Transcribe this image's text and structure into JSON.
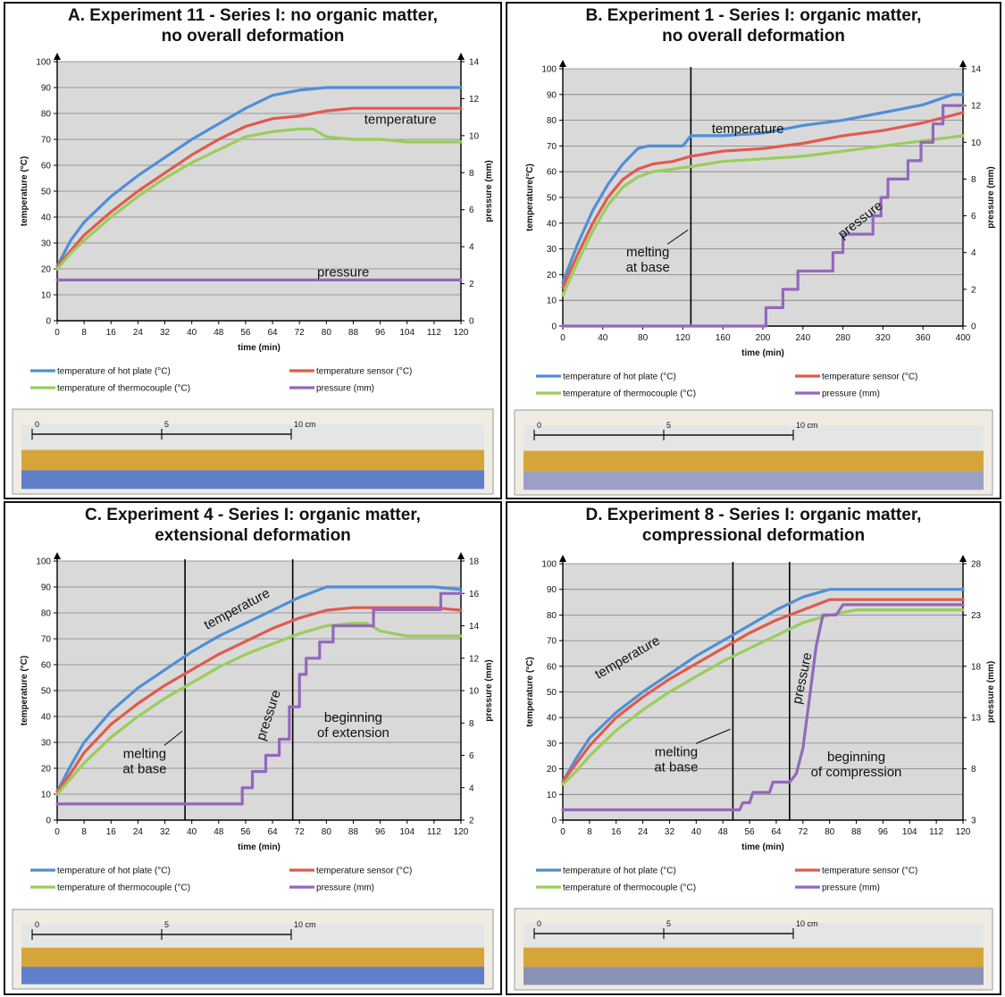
{
  "chart_data": [
    {
      "type": "line",
      "title": "A. Experiment 11 - Series I: no organic matter,\nno overall deformation",
      "xlabel": "time (min)",
      "ylabel": "temperature (°C)",
      "y2label": "pressure (mm)",
      "xlim": [
        0,
        120
      ],
      "ylim": [
        0,
        100
      ],
      "y2lim": [
        0,
        14
      ],
      "xticks": [
        0,
        8,
        16,
        24,
        32,
        40,
        48,
        56,
        64,
        72,
        80,
        88,
        96,
        104,
        112,
        120
      ],
      "yticks": [
        0,
        10,
        20,
        30,
        40,
        50,
        60,
        70,
        80,
        90,
        100
      ],
      "y2ticks": [
        0,
        2,
        4,
        6,
        8,
        10,
        12,
        14
      ],
      "grid": true,
      "legend_position": "bottom",
      "series": [
        {
          "name": "temperature of hot plate (°C)",
          "color": "#4f8fd6",
          "axis": "left",
          "x": [
            0,
            4,
            8,
            16,
            24,
            32,
            40,
            48,
            56,
            64,
            72,
            80,
            88,
            96,
            104,
            112,
            120
          ],
          "y": [
            21,
            31,
            38,
            48,
            56,
            63,
            70,
            76,
            82,
            87,
            89,
            90,
            90,
            90,
            90,
            90,
            90
          ]
        },
        {
          "name": "temperature sensor (°C)",
          "color": "#e05a4f",
          "axis": "left",
          "x": [
            0,
            4,
            8,
            16,
            24,
            32,
            40,
            48,
            56,
            64,
            72,
            80,
            88,
            96,
            104,
            112,
            120
          ],
          "y": [
            21,
            27,
            33,
            42,
            50,
            57,
            64,
            70,
            75,
            78,
            79,
            81,
            82,
            82,
            82,
            82,
            82
          ]
        },
        {
          "name": "temperature of thermocouple (°C)",
          "color": "#9acd5a",
          "axis": "left",
          "x": [
            0,
            4,
            8,
            16,
            24,
            32,
            40,
            48,
            56,
            64,
            72,
            76,
            80,
            88,
            96,
            104,
            112,
            120
          ],
          "y": [
            20,
            26,
            31,
            40,
            48,
            55,
            61,
            66,
            71,
            73,
            74,
            74,
            71,
            70,
            70,
            69,
            69,
            69
          ]
        },
        {
          "name": "pressure (mm)",
          "color": "#9467bd",
          "axis": "right",
          "x": [
            0,
            120
          ],
          "y": [
            2.2,
            2.2
          ]
        }
      ],
      "annotations": [
        {
          "text": "temperature",
          "x": 102,
          "y": 76,
          "rotate": 0,
          "line": false
        },
        {
          "text": "pressure",
          "x": 85,
          "y": 17,
          "rotate": 0,
          "line": false
        }
      ],
      "vlines": [],
      "photo_scale": [
        "0",
        "5",
        "10 cm"
      ]
    },
    {
      "type": "line",
      "title": "B. Experiment 1 - Series I: organic matter,\nno overall deformation",
      "xlabel": "time (min)",
      "ylabel": "temperature(°C)",
      "y2label": "pressure (mm)",
      "xlim": [
        0,
        400
      ],
      "ylim": [
        0,
        100
      ],
      "y2lim": [
        0,
        14
      ],
      "xticks": [
        0,
        40,
        80,
        120,
        160,
        200,
        240,
        280,
        320,
        360,
        400
      ],
      "yticks": [
        0,
        10,
        20,
        30,
        40,
        50,
        60,
        70,
        80,
        90,
        100
      ],
      "y2ticks": [
        0,
        2,
        4,
        6,
        8,
        10,
        12,
        14
      ],
      "grid": true,
      "legend_position": "bottom",
      "series": [
        {
          "name": "temperature of hot plate (°C)",
          "color": "#4f8fd6",
          "axis": "left",
          "x": [
            0,
            15,
            30,
            45,
            60,
            75,
            85,
            100,
            120,
            128,
            160,
            200,
            240,
            280,
            320,
            360,
            390,
            400
          ],
          "y": [
            17,
            32,
            45,
            55,
            63,
            69,
            70,
            70,
            70,
            74,
            74,
            75,
            78,
            80,
            83,
            86,
            90,
            90
          ]
        },
        {
          "name": "temperature sensor (°C)",
          "color": "#e05a4f",
          "axis": "left",
          "x": [
            0,
            15,
            30,
            45,
            60,
            75,
            90,
            110,
            128,
            160,
            200,
            240,
            280,
            320,
            360,
            400
          ],
          "y": [
            15,
            28,
            40,
            50,
            57,
            61,
            63,
            64,
            66,
            68,
            69,
            71,
            74,
            76,
            79,
            83
          ]
        },
        {
          "name": "temperature of thermocouple (°C)",
          "color": "#9acd5a",
          "axis": "left",
          "x": [
            0,
            15,
            30,
            45,
            60,
            75,
            90,
            110,
            128,
            160,
            200,
            240,
            280,
            320,
            360,
            400
          ],
          "y": [
            12,
            25,
            37,
            47,
            54,
            58,
            60,
            61,
            62,
            64,
            65,
            66,
            68,
            70,
            72,
            74
          ]
        },
        {
          "name": "pressure (mm)",
          "color": "#9467bd",
          "axis": "right",
          "x": [
            0,
            203,
            203,
            220,
            220,
            235,
            235,
            270,
            270,
            280,
            280,
            310,
            310,
            318,
            318,
            325,
            325,
            345,
            345,
            358,
            358,
            370,
            370,
            380,
            380,
            388,
            388,
            400
          ],
          "y": [
            0,
            0,
            1,
            1,
            2,
            2,
            3,
            3,
            4,
            4,
            5,
            5,
            6,
            6,
            7,
            7,
            8,
            8,
            9,
            9,
            10,
            10,
            11,
            11,
            12,
            12,
            12,
            12
          ]
        }
      ],
      "annotations": [
        {
          "text": "temperature",
          "x": 185,
          "y": 75,
          "rotate": 0,
          "line": false
        },
        {
          "text": "pressure",
          "x": 300,
          "y": 40,
          "rotate": -38,
          "line": false
        },
        {
          "text": "melting\nat base",
          "x": 85,
          "y": 27,
          "rotate": 0,
          "line": true
        }
      ],
      "vlines": [
        128
      ],
      "photo_scale": [
        "0",
        "5",
        "10 cm"
      ]
    },
    {
      "type": "line",
      "title": "C. Experiment 4 - Series I: organic matter,\nextensional deformation",
      "xlabel": "time (min)",
      "ylabel": "temperature (°C)",
      "y2label": "pressure (mm)",
      "xlim": [
        0,
        120
      ],
      "ylim": [
        0,
        100
      ],
      "y2lim": [
        2,
        18
      ],
      "xticks": [
        0,
        8,
        16,
        24,
        32,
        40,
        48,
        56,
        64,
        72,
        80,
        88,
        96,
        104,
        112,
        120
      ],
      "yticks": [
        0,
        10,
        20,
        30,
        40,
        50,
        60,
        70,
        80,
        90,
        100
      ],
      "y2ticks": [
        2,
        4,
        6,
        8,
        10,
        12,
        14,
        16,
        18
      ],
      "grid": true,
      "legend_position": "bottom",
      "series": [
        {
          "name": "temperature of hot plate (°C)",
          "color": "#4f8fd6",
          "axis": "left",
          "x": [
            0,
            4,
            8,
            16,
            24,
            32,
            40,
            48,
            56,
            64,
            72,
            80,
            88,
            96,
            104,
            112,
            120
          ],
          "y": [
            11,
            21,
            30,
            42,
            51,
            58,
            65,
            71,
            76,
            81,
            86,
            90,
            90,
            90,
            90,
            90,
            89
          ]
        },
        {
          "name": "temperature sensor (°C)",
          "color": "#e05a4f",
          "axis": "left",
          "x": [
            0,
            4,
            8,
            16,
            24,
            32,
            40,
            48,
            56,
            64,
            72,
            80,
            88,
            96,
            104,
            112,
            120
          ],
          "y": [
            11,
            18,
            26,
            37,
            45,
            52,
            58,
            64,
            69,
            74,
            78,
            81,
            82,
            82,
            82,
            82,
            81
          ]
        },
        {
          "name": "temperature of thermocouple (°C)",
          "color": "#9acd5a",
          "axis": "left",
          "x": [
            0,
            4,
            8,
            16,
            24,
            32,
            40,
            48,
            56,
            64,
            72,
            80,
            88,
            92,
            96,
            104,
            112,
            120
          ],
          "y": [
            10,
            16,
            22,
            32,
            40,
            47,
            53,
            59,
            64,
            68,
            72,
            75,
            76,
            76,
            73,
            71,
            71,
            71
          ]
        },
        {
          "name": "pressure (mm)",
          "color": "#9467bd",
          "axis": "right",
          "x": [
            0,
            55,
            55,
            58,
            58,
            62,
            62,
            66,
            66,
            69,
            69,
            72,
            72,
            74,
            74,
            78,
            78,
            82,
            82,
            86,
            86,
            94,
            94,
            104,
            104,
            114,
            114,
            120
          ],
          "y": [
            3,
            3,
            4,
            4,
            5,
            5,
            6,
            6,
            7,
            7,
            9,
            9,
            11,
            11,
            12,
            12,
            13,
            13,
            14,
            14,
            14,
            14,
            15,
            15,
            15,
            15,
            16,
            16
          ]
        }
      ],
      "annotations": [
        {
          "text": "temperature",
          "x": 54,
          "y": 80,
          "rotate": -28,
          "line": false
        },
        {
          "text": "pressure",
          "x": 64,
          "y": 40,
          "rotate": -72,
          "line": false
        },
        {
          "text": "melting\nat base",
          "x": 26,
          "y": 24,
          "rotate": 0,
          "line": true
        },
        {
          "text": "beginning\nof extension",
          "x": 88,
          "y": 38,
          "rotate": 0,
          "line": true
        }
      ],
      "vlines": [
        38,
        70
      ],
      "photo_scale": [
        "0",
        "5",
        "10 cm"
      ]
    },
    {
      "type": "line",
      "title": "D. Experiment 8 - Series I: organic matter,\ncompressional deformation",
      "xlabel": "time (min)",
      "ylabel": "temperature (°C)",
      "y2label": "pressure (mm)",
      "xlim": [
        0,
        120
      ],
      "ylim": [
        0,
        100
      ],
      "y2lim": [
        3,
        28
      ],
      "xticks": [
        0,
        8,
        16,
        24,
        32,
        40,
        48,
        56,
        64,
        72,
        80,
        88,
        96,
        104,
        112,
        120
      ],
      "xticklabels": [
        "0",
        "8",
        "16",
        "24",
        "32",
        "40",
        "48",
        "56",
        "64",
        "72",
        "80",
        "88",
        "96",
        "104",
        "112",
        "120"
      ],
      "yticks": [
        0,
        10,
        20,
        30,
        40,
        50,
        60,
        70,
        80,
        90,
        100
      ],
      "y2ticks": [
        3,
        8,
        13,
        18,
        23,
        28
      ],
      "grid": true,
      "legend_position": "bottom",
      "series": [
        {
          "name": "temperature of hot plate (°C)",
          "color": "#4f8fd6",
          "axis": "left",
          "x": [
            0,
            4,
            8,
            16,
            24,
            32,
            40,
            48,
            56,
            64,
            72,
            80,
            88,
            96,
            104,
            112,
            120
          ],
          "y": [
            15,
            24,
            32,
            42,
            50,
            57,
            64,
            70,
            76,
            82,
            87,
            90,
            90,
            90,
            90,
            90,
            90
          ]
        },
        {
          "name": "temperature sensor (°C)",
          "color": "#e05a4f",
          "axis": "left",
          "x": [
            0,
            4,
            8,
            16,
            24,
            32,
            40,
            48,
            56,
            64,
            72,
            80,
            88,
            96,
            104,
            112,
            120
          ],
          "y": [
            15,
            22,
            29,
            40,
            48,
            55,
            61,
            67,
            73,
            78,
            82,
            86,
            86,
            86,
            86,
            86,
            86
          ]
        },
        {
          "name": "temperature of thermocouple (°C)",
          "color": "#9acd5a",
          "axis": "left",
          "x": [
            0,
            4,
            8,
            16,
            24,
            32,
            40,
            48,
            56,
            64,
            72,
            80,
            88,
            96,
            104,
            112,
            120
          ],
          "y": [
            14,
            19,
            25,
            35,
            43,
            50,
            56,
            62,
            67,
            72,
            77,
            80,
            82,
            82,
            82,
            82,
            82
          ]
        },
        {
          "name": "pressure (mm)",
          "color": "#9467bd",
          "axis": "right",
          "x": [
            0,
            51,
            53,
            54,
            56,
            57,
            62,
            63,
            68,
            70,
            72,
            74,
            76,
            78,
            80,
            82,
            84,
            88,
            120
          ],
          "y": [
            4,
            4,
            4,
            4.7,
            4.7,
            5.7,
            5.7,
            6.7,
            6.7,
            7.5,
            10,
            15,
            20,
            23,
            23,
            23,
            24,
            24,
            24
          ]
        }
      ],
      "annotations": [
        {
          "text": "temperature",
          "x": 20,
          "y": 62,
          "rotate": -30,
          "line": false
        },
        {
          "text": "pressure",
          "x": 73,
          "y": 55,
          "rotate": -78,
          "line": false
        },
        {
          "text": "melting\nat base",
          "x": 34,
          "y": 25,
          "rotate": 0,
          "line": true
        },
        {
          "text": "beginning\nof compression",
          "x": 88,
          "y": 23,
          "rotate": 0,
          "line": true
        }
      ],
      "vlines": [
        51,
        68
      ],
      "photo_scale": [
        "0",
        "5",
        "10 cm"
      ]
    }
  ]
}
